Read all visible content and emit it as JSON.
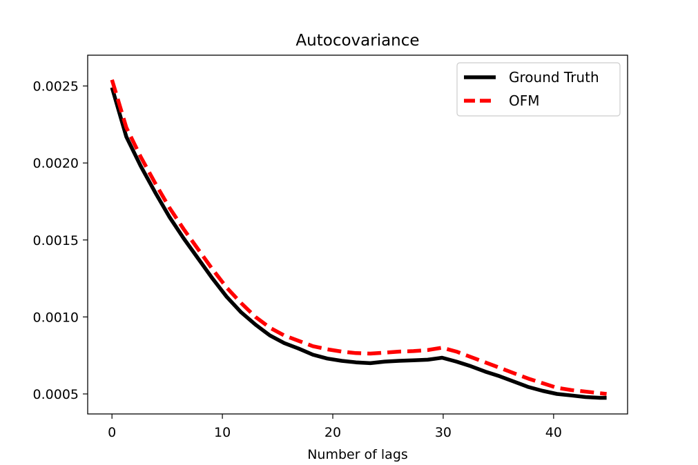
{
  "chart_data": {
    "type": "line",
    "title": "Autocovariance",
    "xlabel": "Number of lags",
    "ylabel": "",
    "xlim": [
      -2.2,
      46.7
    ],
    "ylim": [
      0.00037,
      0.0027
    ],
    "xticks": [
      0,
      10,
      20,
      30,
      40
    ],
    "xtick_labels": [
      "0",
      "10",
      "20",
      "30",
      "40"
    ],
    "yticks": [
      0.0005,
      0.001,
      0.0015,
      0.002,
      0.0025
    ],
    "ytick_labels": [
      "0.0005",
      "0.0010",
      "0.0015",
      "0.0020",
      "0.0025"
    ],
    "grid": false,
    "legend": {
      "placement": "top-right"
    },
    "series": [
      {
        "name": "Ground Truth",
        "color": "#000000",
        "style": "solid",
        "x": [
          0,
          1.3,
          2.6,
          3.9,
          5.2,
          6.5,
          7.8,
          9.1,
          10.4,
          11.7,
          13,
          14.3,
          15.6,
          16.9,
          18.2,
          19.5,
          20.8,
          22.1,
          23.4,
          24.7,
          26,
          27.3,
          28.6,
          29.9,
          31.2,
          32.5,
          33.8,
          35.1,
          36.4,
          37.7,
          39,
          40.3,
          41.6,
          42.9,
          44.2,
          44.8
        ],
        "y": [
          0.00249,
          0.00217,
          0.00198,
          0.00181,
          0.00165,
          0.00151,
          0.00138,
          0.00125,
          0.00113,
          0.00103,
          0.00095,
          0.00088,
          0.00083,
          0.000795,
          0.000755,
          0.00073,
          0.000715,
          0.000705,
          0.0007,
          0.00071,
          0.000715,
          0.000718,
          0.000722,
          0.000735,
          0.00071,
          0.00068,
          0.000645,
          0.000615,
          0.00058,
          0.000545,
          0.00052,
          0.0005,
          0.00049,
          0.00048,
          0.000475,
          0.000475
        ]
      },
      {
        "name": "OFM",
        "color": "#ff0000",
        "style": "dashed",
        "x": [
          0,
          1.3,
          2.6,
          3.9,
          5.2,
          6.5,
          7.8,
          9.1,
          10.4,
          11.7,
          13,
          14.3,
          15.6,
          16.9,
          18.2,
          19.5,
          20.8,
          22.1,
          23.4,
          24.7,
          26,
          27.3,
          28.6,
          29.9,
          31.2,
          32.5,
          33.8,
          35.1,
          36.4,
          37.7,
          39,
          40.3,
          41.6,
          42.9,
          44.2,
          44.8
        ],
        "y": [
          0.00254,
          0.00223,
          0.00204,
          0.00187,
          0.00171,
          0.00157,
          0.00144,
          0.00131,
          0.00119,
          0.00109,
          0.001,
          0.00093,
          0.00088,
          0.000845,
          0.00081,
          0.00079,
          0.000775,
          0.000765,
          0.000762,
          0.000768,
          0.000775,
          0.000778,
          0.000785,
          0.0008,
          0.000775,
          0.00074,
          0.000705,
          0.00067,
          0.000635,
          0.0006,
          0.00057,
          0.00054,
          0.000525,
          0.000515,
          0.000505,
          0.0005
        ]
      }
    ]
  }
}
